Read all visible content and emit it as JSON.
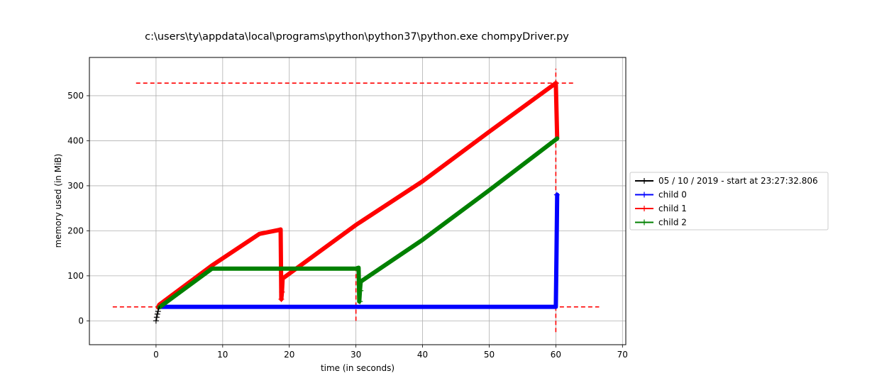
{
  "chart_data": {
    "type": "line",
    "title": "c:\\users\\ty\\appdata\\local\\programs\\python\\python37\\python.exe chompyDriver.py",
    "xlabel": "time (in seconds)",
    "ylabel": "memory used (in MiB)",
    "xlim": [
      -10,
      70.5
    ],
    "ylim": [
      -53,
      585
    ],
    "xticks": [
      0,
      10,
      20,
      30,
      40,
      50,
      60,
      70
    ],
    "yticks": [
      0,
      100,
      200,
      300,
      400,
      500
    ],
    "grid": true,
    "legend_position": "right",
    "series": [
      {
        "name": "05 / 10 / 2019 - start at 23:27:32.806",
        "color": "#000000",
        "x": [
          0.0,
          0.1,
          0.2,
          0.3,
          0.4,
          0.5
        ],
        "y": [
          0,
          8,
          15,
          21,
          27,
          31
        ]
      },
      {
        "name": "child 0",
        "color": "#0000ff",
        "x": [
          0.5,
          10,
          20,
          30,
          40,
          50,
          60.0,
          60.1,
          60.2
        ],
        "y": [
          31,
          31,
          31,
          31,
          31,
          31,
          31,
          150,
          280
        ]
      },
      {
        "name": "child 1",
        "color": "#ff0000",
        "x": [
          0.3,
          0.5,
          8.4,
          15.5,
          18.5,
          18.7,
          18.8,
          18.9,
          19.0,
          30.0,
          40.0,
          50.0,
          60.0,
          60.2
        ],
        "y": [
          30,
          36,
          123,
          193,
          202,
          203,
          48,
          64,
          94,
          213,
          310,
          420,
          528,
          405
        ]
      },
      {
        "name": "child 2",
        "color": "#008000",
        "x": [
          0.5,
          8.4,
          15,
          20,
          25,
          30,
          30.4,
          30.5,
          30.6,
          30.7,
          30.8,
          40,
          50,
          60.2
        ],
        "y": [
          30,
          116,
          116,
          116,
          116,
          116,
          118,
          43,
          67,
          85,
          88,
          180,
          290,
          405
        ]
      }
    ],
    "hlines": [
      {
        "y": 528,
        "x": [
          -3,
          63
        ],
        "color": "#ff0000",
        "style": "dashed"
      },
      {
        "y": 31,
        "x": [
          -6.5,
          66.5
        ],
        "color": "#ff0000",
        "style": "dashed"
      }
    ],
    "vlines": [
      {
        "x": 30,
        "y": [
          0,
          116
        ],
        "color": "#ff0000",
        "style": "dashed"
      },
      {
        "x": 60,
        "y": [
          -25,
          560
        ],
        "color": "#ff0000",
        "style": "dashed"
      }
    ],
    "markers": [
      {
        "series": 0,
        "x": 0.0,
        "y": 0
      },
      {
        "series": 0,
        "x": 0.1,
        "y": 8
      },
      {
        "series": 0,
        "x": 0.2,
        "y": 15
      },
      {
        "series": 0,
        "x": 0.3,
        "y": 21
      },
      {
        "series": 1,
        "x": 60.15,
        "y": 280
      },
      {
        "series": 2,
        "x": 18.8,
        "y": 48
      },
      {
        "series": 2,
        "x": 18.9,
        "y": 64
      },
      {
        "series": 3,
        "x": 30.6,
        "y": 43
      },
      {
        "series": 3,
        "x": 30.7,
        "y": 67
      }
    ]
  }
}
